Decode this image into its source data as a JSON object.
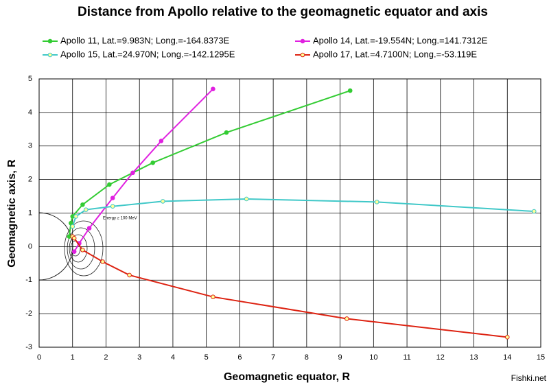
{
  "chart_data": {
    "type": "line",
    "title": "Distance from Apollo  relative to the geomagnetic equator and axis",
    "x_label": "Geomagnetic equator, R",
    "y_label": "Geomagnetic axis, R",
    "annotation": "Energy ≥ 100 MeV",
    "watermark": "Fishki.net",
    "xlim": [
      0,
      15
    ],
    "ylim": [
      -3,
      5
    ],
    "xticks": [
      0,
      1,
      2,
      3,
      4,
      5,
      6,
      7,
      8,
      9,
      10,
      11,
      12,
      13,
      14,
      15
    ],
    "yticks": [
      -3,
      -2,
      -1,
      0,
      1,
      2,
      3,
      4,
      5
    ],
    "grid": true,
    "series": [
      {
        "name": "Apollo 11, Lat.=9.983N; Long.=-164.8373E",
        "color": "#33cc33",
        "marker": "filled",
        "x": [
          0.9,
          0.95,
          1.0,
          1.3,
          2.1,
          3.4,
          5.6,
          9.3
        ],
        "values": [
          0.3,
          0.7,
          0.9,
          1.25,
          1.85,
          2.5,
          3.4,
          4.65
        ]
      },
      {
        "name": "Apollo 14, Lat.=-19.554N; Long.=141.7312E",
        "color": "#e020e0",
        "marker": "filled",
        "x": [
          1.05,
          1.2,
          1.5,
          2.2,
          2.8,
          3.65,
          5.2
        ],
        "values": [
          -0.15,
          0.1,
          0.55,
          1.45,
          2.2,
          3.15,
          4.7
        ]
      },
      {
        "name": "Apollo 15, Lat.=24.970N; Long.=-142.1295E",
        "color": "#40c8c8",
        "marker": "open",
        "x": [
          1.0,
          1.1,
          1.4,
          2.2,
          3.7,
          6.2,
          10.1,
          14.8
        ],
        "values": [
          0.6,
          0.9,
          1.1,
          1.2,
          1.35,
          1.42,
          1.33,
          1.05
        ]
      },
      {
        "name": "Apollo 17, Lat.=4.7100N; Long.=-53.119E",
        "color": "#dd2211",
        "marker": "open",
        "x": [
          1.0,
          1.05,
          1.3,
          1.9,
          2.7,
          5.2,
          9.2,
          14.0
        ],
        "values": [
          0.3,
          0.25,
          -0.1,
          -0.45,
          -0.85,
          -1.5,
          -2.15,
          -2.7
        ]
      }
    ]
  }
}
